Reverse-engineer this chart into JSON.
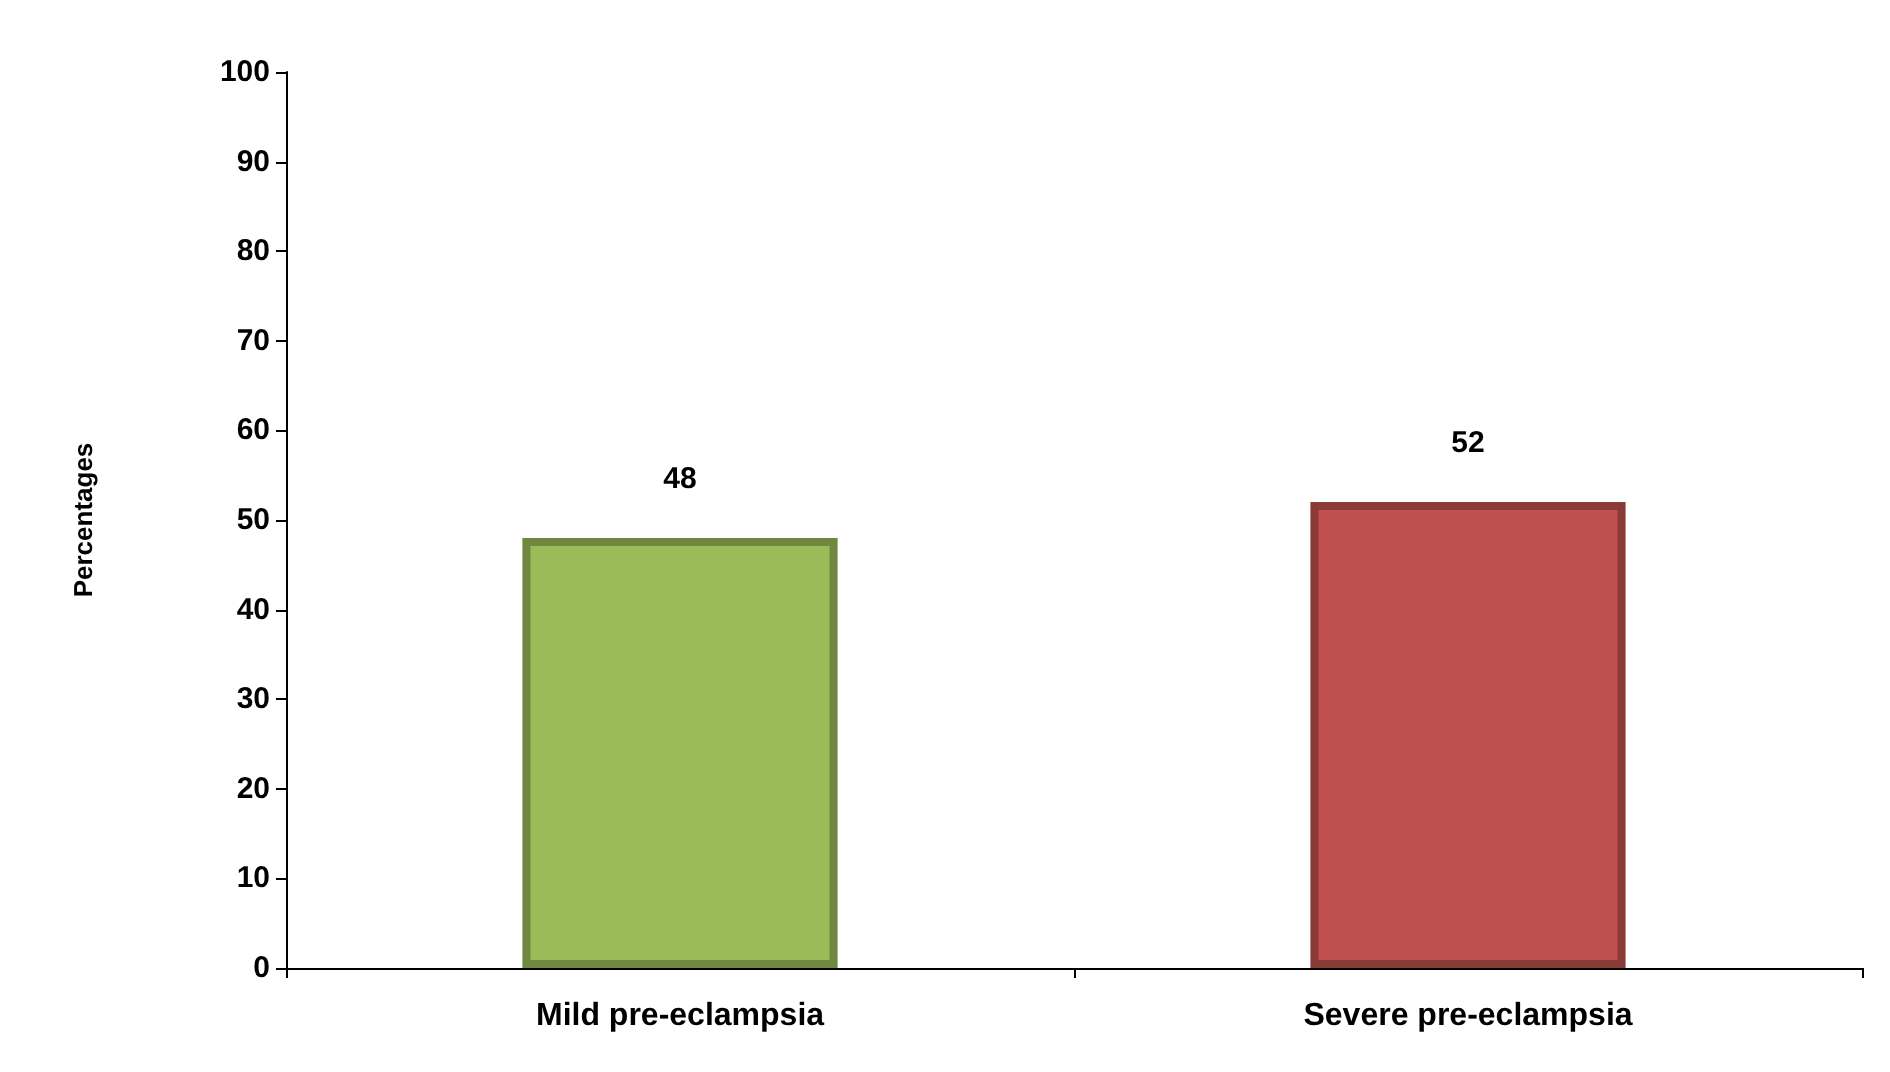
{
  "chart_data": {
    "type": "bar",
    "ylabel": "Percentages",
    "categories": [
      "Mild pre-eclampsia",
      "Severe pre-eclampsia"
    ],
    "values": [
      48,
      52
    ],
    "colors": [
      "#9bbb59",
      "#c0504d"
    ],
    "ylim": [
      0,
      100
    ],
    "yticks": [
      0,
      10,
      20,
      30,
      40,
      50,
      60,
      70,
      80,
      90,
      100
    ],
    "grid": false,
    "data_labels": true
  }
}
